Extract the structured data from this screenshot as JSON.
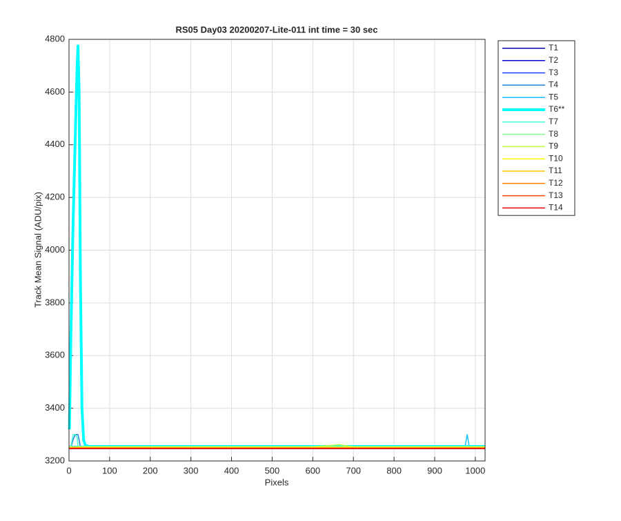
{
  "chart_data": {
    "type": "line",
    "title": "RS05 Day03 20200207-Lite-011 int time = 30 sec",
    "xlabel": "Pixels",
    "ylabel": "Track Mean Signal (ADU/pix)",
    "x": [
      1,
      5,
      10,
      15,
      20,
      22,
      25,
      28,
      32,
      36,
      40,
      50,
      100,
      130,
      200,
      300,
      400,
      500,
      600,
      665,
      700,
      800,
      900,
      975,
      980,
      985,
      1024
    ],
    "xlim": [
      0,
      1024
    ],
    "ylim": [
      3200,
      4800
    ],
    "xticks": [
      0,
      100,
      200,
      300,
      400,
      500,
      600,
      700,
      800,
      900,
      1000
    ],
    "yticks": [
      3200,
      3400,
      3600,
      3800,
      4000,
      4200,
      4400,
      4600,
      4800
    ],
    "grid": true,
    "legend": "outside-top-right",
    "series": [
      {
        "name": "T1",
        "color": "#0000aa",
        "values": [
          3250,
          3250,
          3250,
          3250,
          3250,
          3250,
          3250,
          3250,
          3250,
          3250,
          3250,
          3250,
          3250,
          3250,
          3250,
          3250,
          3250,
          3250,
          3250,
          3250,
          3250,
          3250,
          3250,
          3250,
          3250,
          3250,
          3250
        ]
      },
      {
        "name": "T2",
        "color": "#0000dd",
        "values": [
          3251,
          3251,
          3251,
          3251,
          3251,
          3251,
          3251,
          3251,
          3251,
          3251,
          3251,
          3251,
          3251,
          3251,
          3251,
          3251,
          3251,
          3251,
          3251,
          3251,
          3251,
          3251,
          3251,
          3251,
          3251,
          3251,
          3251
        ]
      },
      {
        "name": "T3",
        "color": "#1040ff",
        "values": [
          3252,
          3252,
          3252,
          3252,
          3252,
          3252,
          3252,
          3252,
          3252,
          3252,
          3252,
          3252,
          3252,
          3252,
          3252,
          3252,
          3252,
          3252,
          3252,
          3252,
          3252,
          3252,
          3252,
          3252,
          3252,
          3252,
          3252
        ]
      },
      {
        "name": "T4",
        "color": "#1a80e0",
        "values": [
          3253,
          3253,
          3280,
          3300,
          3300,
          3300,
          3280,
          3253,
          3253,
          3253,
          3253,
          3253,
          3253,
          3253,
          3253,
          3253,
          3253,
          3253,
          3253,
          3253,
          3253,
          3253,
          3253,
          3253,
          3253,
          3253,
          3253
        ]
      },
      {
        "name": "T5",
        "color": "#19c0ff",
        "values": [
          3256,
          3256,
          3256,
          3256,
          3256,
          3256,
          3256,
          3256,
          3256,
          3256,
          3256,
          3256,
          3256,
          3258,
          3258,
          3256,
          3256,
          3256,
          3256,
          3256,
          3256,
          3256,
          3256,
          3256,
          3300,
          3256,
          3256
        ]
      },
      {
        "name": "T6**",
        "color": "#00ffff",
        "width": 4,
        "values": [
          3320,
          3700,
          4100,
          4400,
          4700,
          4775,
          4600,
          3900,
          3400,
          3280,
          3260,
          3255,
          3255,
          3255,
          3255,
          3255,
          3255,
          3255,
          3255,
          3255,
          3255,
          3255,
          3255,
          3255,
          3255,
          3255,
          3255
        ]
      },
      {
        "name": "T7",
        "color": "#40ffd0",
        "values": [
          3256,
          3256,
          3300,
          3300,
          3290,
          3256,
          3256,
          3256,
          3256,
          3256,
          3256,
          3256,
          3256,
          3256,
          3256,
          3256,
          3256,
          3256,
          3256,
          3256,
          3256,
          3256,
          3256,
          3256,
          3256,
          3256,
          3256
        ]
      },
      {
        "name": "T8",
        "color": "#80ff90",
        "values": [
          3254,
          3254,
          3254,
          3254,
          3254,
          3254,
          3254,
          3254,
          3254,
          3254,
          3254,
          3254,
          3254,
          3254,
          3254,
          3254,
          3254,
          3254,
          3254,
          3254,
          3254,
          3254,
          3254,
          3254,
          3254,
          3254,
          3254
        ]
      },
      {
        "name": "T9",
        "color": "#c0ff40",
        "values": [
          3253,
          3253,
          3253,
          3253,
          3253,
          3253,
          3253,
          3253,
          3253,
          3253,
          3253,
          3253,
          3253,
          3253,
          3253,
          3253,
          3253,
          3253,
          3253,
          3262,
          3253,
          3253,
          3253,
          3253,
          3253,
          3253,
          3253
        ]
      },
      {
        "name": "T10",
        "color": "#ffff00",
        "values": [
          3252,
          3252,
          3252,
          3252,
          3252,
          3252,
          3252,
          3252,
          3252,
          3252,
          3252,
          3252,
          3252,
          3252,
          3252,
          3252,
          3252,
          3252,
          3252,
          3252,
          3252,
          3252,
          3252,
          3252,
          3252,
          3252,
          3252
        ]
      },
      {
        "name": "T11",
        "color": "#ffc000",
        "values": [
          3250,
          3250,
          3250,
          3250,
          3250,
          3250,
          3250,
          3250,
          3250,
          3250,
          3250,
          3250,
          3250,
          3250,
          3250,
          3250,
          3250,
          3250,
          3250,
          3250,
          3250,
          3250,
          3250,
          3250,
          3250,
          3250,
          3250
        ]
      },
      {
        "name": "T12",
        "color": "#ff8000",
        "values": [
          3249,
          3249,
          3249,
          3249,
          3249,
          3249,
          3249,
          3249,
          3249,
          3249,
          3249,
          3249,
          3249,
          3249,
          3249,
          3249,
          3249,
          3249,
          3249,
          3249,
          3249,
          3249,
          3249,
          3249,
          3249,
          3249,
          3249
        ]
      },
      {
        "name": "T13",
        "color": "#ff4000",
        "values": [
          3248,
          3248,
          3248,
          3248,
          3248,
          3248,
          3248,
          3248,
          3248,
          3248,
          3248,
          3248,
          3248,
          3248,
          3248,
          3248,
          3248,
          3248,
          3248,
          3248,
          3248,
          3248,
          3248,
          3248,
          3248,
          3248,
          3248
        ]
      },
      {
        "name": "T14",
        "color": "#dd0000",
        "values": [
          3247,
          3247,
          3247,
          3247,
          3247,
          3247,
          3247,
          3247,
          3247,
          3247,
          3247,
          3247,
          3247,
          3247,
          3247,
          3247,
          3247,
          3247,
          3247,
          3247,
          3247,
          3247,
          3247,
          3247,
          3247,
          3247,
          3247
        ]
      }
    ]
  }
}
